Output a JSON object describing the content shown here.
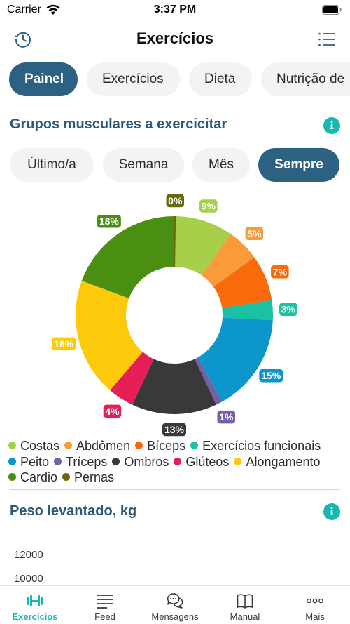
{
  "status": {
    "carrier": "Carrier",
    "time": "3:37 PM"
  },
  "header": {
    "title": "Exercícios",
    "history_icon": "history-icon",
    "menu_icon": "list-icon"
  },
  "tabs": [
    {
      "label": "Painel",
      "active": true
    },
    {
      "label": "Exercícios",
      "active": false
    },
    {
      "label": "Dieta",
      "active": false
    },
    {
      "label": "Nutrição de",
      "active": false
    }
  ],
  "muscle_section": {
    "title": "Grupos musculares a exercicitar",
    "info_icon": "i",
    "periods": [
      {
        "label": "Último/a",
        "active": false
      },
      {
        "label": "Semana",
        "active": false
      },
      {
        "label": "Mês",
        "active": false
      },
      {
        "label": "Sempre",
        "active": true
      }
    ]
  },
  "chart_data": {
    "type": "pie",
    "donut": true,
    "categories": [
      "Costas",
      "Abdômen",
      "Bíceps",
      "Exercícios funcionais",
      "Peito",
      "Tríceps",
      "Ombros",
      "Glúteos",
      "Alongamento",
      "Cardio",
      "Pernas"
    ],
    "values": [
      9,
      5,
      7,
      3,
      15,
      1,
      13,
      4,
      18,
      18,
      0
    ],
    "labels": [
      "9%",
      "5%",
      "7%",
      "3%",
      "15%",
      "1%",
      "13%",
      "4%",
      "18%",
      "18%",
      "0%"
    ],
    "colors": [
      "#a7cf4a",
      "#fa9b3a",
      "#f96a0d",
      "#1cc1a4",
      "#0d96cc",
      "#7460a8",
      "#3a3838",
      "#e51f55",
      "#fcc90b",
      "#4b8f12",
      "#6a6a0d"
    ],
    "label_text_colors": [
      "#ffffff",
      "#ffffff",
      "#ffffff",
      "#ffffff",
      "#ffffff",
      "#ffffff",
      "#ffffff",
      "#ffffff",
      "#ffffff",
      "#ffffff",
      "#ffffff"
    ],
    "legend_position": "bottom"
  },
  "weight_section": {
    "title": "Peso levantado, kg",
    "info_icon": "i",
    "y_ticks": [
      "12000",
      "10000"
    ]
  },
  "bottom_nav": [
    {
      "label": "Exercícios",
      "icon": "dumbbell-icon",
      "active": true
    },
    {
      "label": "Feed",
      "icon": "feed-icon",
      "active": false
    },
    {
      "label": "Mensagens",
      "icon": "chat-bubbles-icon",
      "active": false
    },
    {
      "label": "Manual",
      "icon": "book-icon",
      "active": false
    },
    {
      "label": "Mais",
      "icon": "more-dots-icon",
      "active": false
    }
  ],
  "colors": {
    "accent": "#2c6181",
    "teal": "#16b9b0",
    "title": "#2c5a76"
  }
}
